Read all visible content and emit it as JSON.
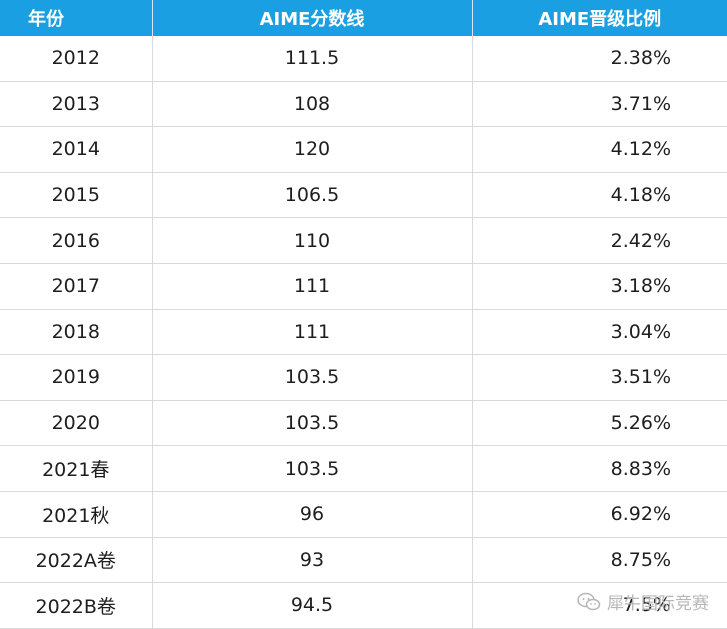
{
  "table": {
    "headers": {
      "year": "年份",
      "score": "AIME分数线",
      "ratio": "AIME晋级比例"
    },
    "rows": [
      {
        "year": "2012",
        "score": "111.5",
        "ratio": "2.38%"
      },
      {
        "year": "2013",
        "score": "108",
        "ratio": "3.71%"
      },
      {
        "year": "2014",
        "score": "120",
        "ratio": "4.12%"
      },
      {
        "year": "2015",
        "score": "106.5",
        "ratio": "4.18%"
      },
      {
        "year": "2016",
        "score": "110",
        "ratio": "2.42%"
      },
      {
        "year": "2017",
        "score": "111",
        "ratio": "3.18%"
      },
      {
        "year": "2018",
        "score": "111",
        "ratio": "3.04%"
      },
      {
        "year": "2019",
        "score": "103.5",
        "ratio": "3.51%"
      },
      {
        "year": "2020",
        "score": "103.5",
        "ratio": "5.26%"
      },
      {
        "year": "2021春",
        "score": "103.5",
        "ratio": "8.83%"
      },
      {
        "year": "2021秋",
        "score": "96",
        "ratio": "6.92%"
      },
      {
        "year": "2022A卷",
        "score": "93",
        "ratio": "8.75%"
      },
      {
        "year": "2022B卷",
        "score": "94.5",
        "ratio": "7.5%"
      }
    ]
  },
  "watermark": {
    "icon": "wechat-icon",
    "text": "犀牛国际竞赛"
  },
  "colors": {
    "header_background": "#1aa0e2",
    "header_text": "#ffffff",
    "grid_line": "#d9d9d9",
    "cell_text": "#1e1e1e",
    "watermark": "#b7b7b7"
  }
}
